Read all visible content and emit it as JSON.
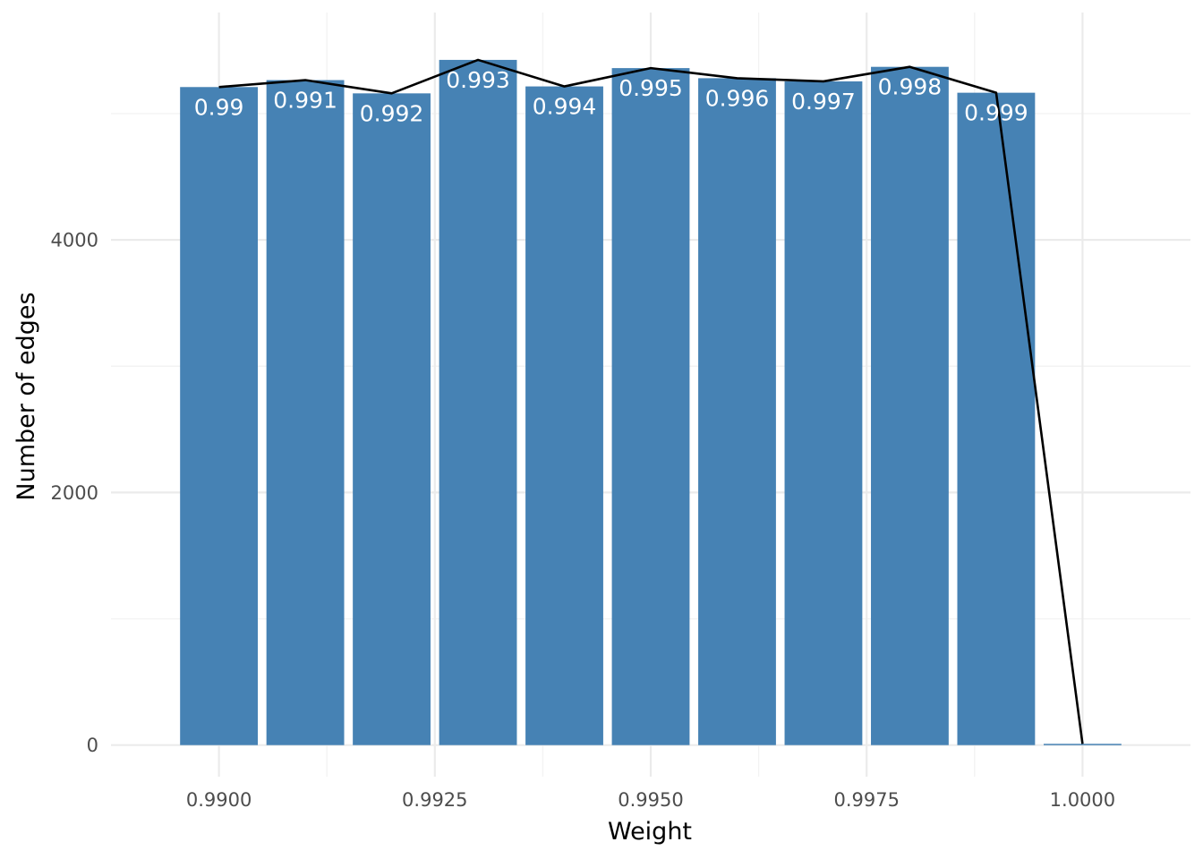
{
  "chart_data": {
    "type": "bar",
    "xlabel": "Weight",
    "ylabel": "Number of edges",
    "xlim": [
      0.98875,
      1.00125
    ],
    "ylim": [
      -250,
      5800
    ],
    "x_ticks": [
      0.99,
      0.9925,
      0.995,
      0.9975,
      1.0
    ],
    "x_tick_labels": [
      "0.9900",
      "0.9925",
      "0.9950",
      "0.9975",
      "1.0000"
    ],
    "x_minor_ticks": [
      0.99125,
      0.99375,
      0.99625,
      0.99875
    ],
    "y_ticks": [
      0,
      2000,
      4000
    ],
    "y_tick_labels": [
      "0",
      "2000",
      "4000"
    ],
    "y_minor_ticks": [
      1000,
      3000,
      5000
    ],
    "grid": true,
    "bar_color": "#4682B4",
    "line_color": "#000000",
    "bar_width": 0.0009,
    "x": [
      0.99,
      0.991,
      0.992,
      0.993,
      0.994,
      0.995,
      0.996,
      0.997,
      0.998,
      0.999,
      1.0
    ],
    "values": [
      5210,
      5265,
      5160,
      5425,
      5215,
      5360,
      5280,
      5255,
      5370,
      5165,
      10
    ],
    "bar_labels": [
      "0.99",
      "0.991",
      "0.992",
      "0.993",
      "0.994",
      "0.995",
      "0.996",
      "0.997",
      "0.998",
      "0.999",
      ""
    ]
  }
}
